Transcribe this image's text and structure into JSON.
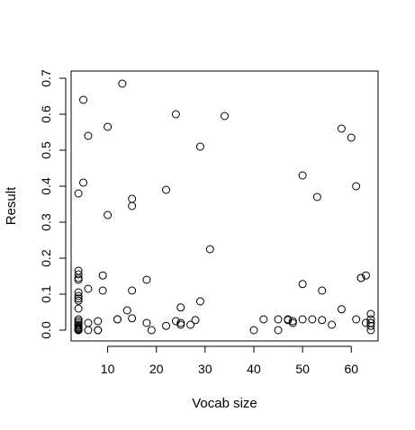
{
  "chart_data": {
    "type": "scatter",
    "title": "",
    "xlabel": "Vocab size",
    "ylabel": "Result",
    "xlim": [
      2.5,
      65.5
    ],
    "ylim": [
      -0.03,
      0.72
    ],
    "xticks": [
      10,
      20,
      30,
      40,
      50,
      60
    ],
    "yticks": [
      0.0,
      0.1,
      0.2,
      0.3,
      0.4,
      0.5,
      0.6,
      0.7
    ],
    "xtick_labels": [
      "10",
      "20",
      "30",
      "40",
      "50",
      "60"
    ],
    "ytick_labels": [
      "0.0",
      "0.1",
      "0.2",
      "0.3",
      "0.4",
      "0.5",
      "0.6",
      "0.7"
    ],
    "grid": false,
    "series": [
      {
        "x": [
          4,
          4,
          4,
          4,
          4,
          4,
          4,
          4,
          4,
          4,
          4,
          4,
          4,
          4,
          4,
          4,
          4,
          4,
          4,
          4,
          4,
          4,
          5,
          5,
          6,
          6,
          6,
          6,
          8,
          8,
          8,
          9,
          9,
          10,
          10,
          12,
          12,
          13,
          14,
          15,
          15,
          15,
          15,
          18,
          18,
          19,
          22,
          22,
          24,
          24,
          25,
          25,
          25,
          27,
          28,
          29,
          29,
          31,
          34,
          40,
          42,
          45,
          45,
          47,
          47,
          48,
          48,
          50,
          50,
          50,
          52,
          53,
          54,
          54,
          56,
          58,
          58,
          60,
          61,
          61,
          62,
          62,
          63,
          63,
          64,
          64,
          64,
          64,
          64,
          64
        ],
        "y": [
          0.38,
          0.165,
          0.155,
          0.145,
          0.14,
          0.105,
          0.095,
          0.088,
          0.082,
          0.06,
          0.03,
          0.025,
          0.02,
          0.015,
          0.012,
          0.008,
          0.005,
          0.003,
          0.002,
          0.0,
          0.0,
          0.0,
          0.64,
          0.41,
          0.54,
          0.115,
          0.02,
          0.0,
          0.025,
          0.0,
          0.0,
          0.152,
          0.11,
          0.565,
          0.32,
          0.03,
          0.03,
          0.685,
          0.055,
          0.365,
          0.345,
          0.11,
          0.033,
          0.14,
          0.02,
          0.0,
          0.39,
          0.012,
          0.6,
          0.025,
          0.063,
          0.02,
          0.015,
          0.015,
          0.028,
          0.51,
          0.08,
          0.225,
          0.595,
          0.0,
          0.03,
          0.03,
          0.0,
          0.03,
          0.028,
          0.025,
          0.02,
          0.43,
          0.128,
          0.03,
          0.03,
          0.37,
          0.11,
          0.028,
          0.015,
          0.56,
          0.058,
          0.535,
          0.4,
          0.03,
          0.145,
          0.145,
          0.02,
          0.152,
          0.045,
          0.03,
          0.02,
          0.02,
          0.012,
          0.0
        ]
      }
    ]
  }
}
